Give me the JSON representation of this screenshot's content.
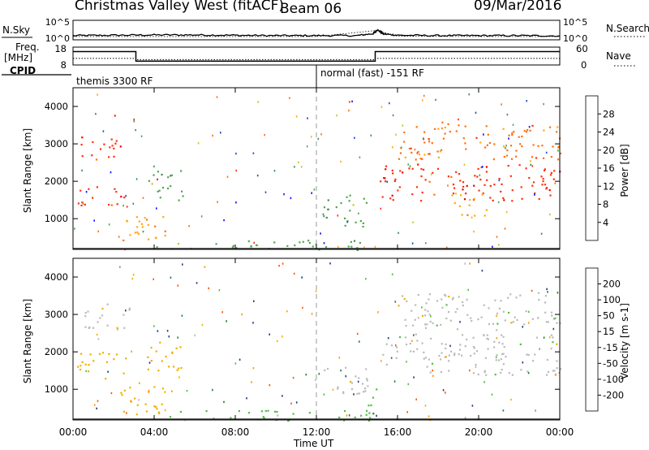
{
  "header": {
    "station": "Christmas Valley West (fitACF)",
    "beam": "Beam 06",
    "date": "09/Mar/2016"
  },
  "left_labels": {
    "nsky": "N.Sky",
    "freq": "Freq.",
    "freq_unit": "[MHz]",
    "cpid": "CPID"
  },
  "right_labels": {
    "nsearch": "N.Search",
    "nave": "Nave"
  },
  "cpid_modes": [
    {
      "label": "themis 3300 RF",
      "start_hour": 0
    },
    {
      "label": "normal (fast) -151 RF",
      "start_hour": 12
    }
  ],
  "colors": {
    "power_scale": [
      "#1010ff",
      "#2050c0",
      "#408a60",
      "#50a850",
      "#c8c820",
      "#ffaa10",
      "#ff7010",
      "#ff3010",
      "#ee0000"
    ],
    "velocity_scale": [
      "#ff0000",
      "#ff5500",
      "#ff9900",
      "#f0b000",
      "#bbbbbb",
      "#50c040",
      "#208030",
      "#204080",
      "#1010c0"
    ],
    "rule": "#000000",
    "dashed_noon": "#999999"
  },
  "chart_data": [
    {
      "type": "line",
      "panel": "noise",
      "series": [
        {
          "name": "N.Sky",
          "x": [
            0,
            2,
            4,
            6,
            8,
            10,
            12,
            14,
            14.8,
            15,
            15.3,
            16,
            18,
            20,
            22,
            24
          ],
          "y": [
            0.8,
            0.9,
            1.0,
            1.0,
            0.9,
            0.8,
            0.8,
            0.8,
            1.4,
            2.6,
            1.3,
            0.9,
            0.8,
            0.8,
            0.8,
            0.7
          ]
        },
        {
          "name": "N.Search",
          "x": [
            0,
            4,
            8,
            12,
            15,
            16,
            20,
            24
          ],
          "y": [
            0.5,
            0.5,
            0.5,
            0.5,
            2.4,
            0.6,
            0.5,
            0.5
          ]
        }
      ],
      "left_ticks": [
        "10^5",
        "10^0"
      ],
      "right_ticks": [
        "10^5",
        "10^0"
      ],
      "xlim": [
        0,
        24
      ]
    },
    {
      "type": "line",
      "panel": "frequency",
      "series": [
        {
          "name": "Freq.",
          "x": [
            0,
            3.1,
            3.1,
            14.9,
            14.9,
            24
          ],
          "y": [
            15.5,
            15.5,
            10.2,
            10.2,
            15.5,
            15.5
          ]
        },
        {
          "name": "Nave",
          "x": [
            0,
            3.1,
            3.1,
            14.9,
            14.9,
            24
          ],
          "y": [
            22,
            22,
            18,
            18,
            22,
            22
          ]
        }
      ],
      "left_ticks": [
        "18",
        "8"
      ],
      "right_ticks": [
        "60",
        "0"
      ],
      "ylim": [
        8,
        18
      ],
      "xlim": [
        0,
        24
      ]
    },
    {
      "type": "heatmap",
      "panel": "power",
      "ylabel": "Slant Range [km]",
      "y_ticks": [
        "1000",
        "2000",
        "3000",
        "4000"
      ],
      "ylim": [
        180,
        4500
      ],
      "xlim": [
        0,
        24
      ],
      "colorbar_label": "Power [dB]",
      "colorbar_ticks": [
        "4",
        "8",
        "12",
        "16",
        "20",
        "24",
        "28"
      ],
      "regions": [
        {
          "t": [
            0.3,
            2.8
          ],
          "r": [
            2600,
            3200
          ],
          "value": 26
        },
        {
          "t": [
            0.2,
            2.5
          ],
          "r": [
            1350,
            1950
          ],
          "value": 27
        },
        {
          "t": [
            2.3,
            4.6
          ],
          "r": [
            250,
            1100
          ],
          "value": 20
        },
        {
          "t": [
            3.5,
            5.5
          ],
          "r": [
            1500,
            2300
          ],
          "value": 14
        },
        {
          "t": [
            4.0,
            14.8
          ],
          "r": [
            180,
            450
          ],
          "value": 12
        },
        {
          "t": [
            12.3,
            14.5
          ],
          "r": [
            800,
            1700
          ],
          "value": 13
        },
        {
          "t": [
            15.1,
            24
          ],
          "r": [
            1500,
            2500
          ],
          "value": 27
        },
        {
          "t": [
            18.5,
            20.5
          ],
          "r": [
            1100,
            1700
          ],
          "value": 19
        },
        {
          "t": [
            16.0,
            24
          ],
          "r": [
            2600,
            3600
          ],
          "value": 22
        }
      ]
    },
    {
      "type": "heatmap",
      "panel": "velocity",
      "ylabel": "Slant Range [km]",
      "y_ticks": [
        "1000",
        "2000",
        "3000",
        "4000"
      ],
      "ylim": [
        180,
        4500
      ],
      "xlim": [
        0,
        24
      ],
      "colorbar_label": "Velocity [m s-1]",
      "colorbar_ticks": [
        "200",
        "100",
        "50",
        "15",
        "-15",
        "-50",
        "-100",
        "-200"
      ],
      "x_ticks": [
        "00:00",
        "04:00",
        "08:00",
        "12:00",
        "16:00",
        "20:00",
        "00:00"
      ],
      "xlabel": "Time UT",
      "regions": [
        {
          "t": [
            0.3,
            2.8
          ],
          "r": [
            2600,
            3300
          ],
          "value": 0
        },
        {
          "t": [
            0.2,
            2.6
          ],
          "r": [
            1300,
            2000
          ],
          "value": -30
        },
        {
          "t": [
            2.3,
            4.6
          ],
          "r": [
            250,
            1100
          ],
          "value": -40
        },
        {
          "t": [
            3.5,
            5.5
          ],
          "r": [
            1500,
            2300
          ],
          "value": -40
        },
        {
          "t": [
            4.0,
            14.8
          ],
          "r": [
            180,
            450
          ],
          "value": 30
        },
        {
          "t": [
            12.3,
            14.5
          ],
          "r": [
            800,
            1700
          ],
          "value": 0
        },
        {
          "t": [
            14.3,
            15.0
          ],
          "r": [
            300,
            1100
          ],
          "value": 40
        },
        {
          "t": [
            15.1,
            24
          ],
          "r": [
            1400,
            2500
          ],
          "value": 0
        },
        {
          "t": [
            16.0,
            24
          ],
          "r": [
            2600,
            3600
          ],
          "value": 0
        }
      ]
    }
  ]
}
